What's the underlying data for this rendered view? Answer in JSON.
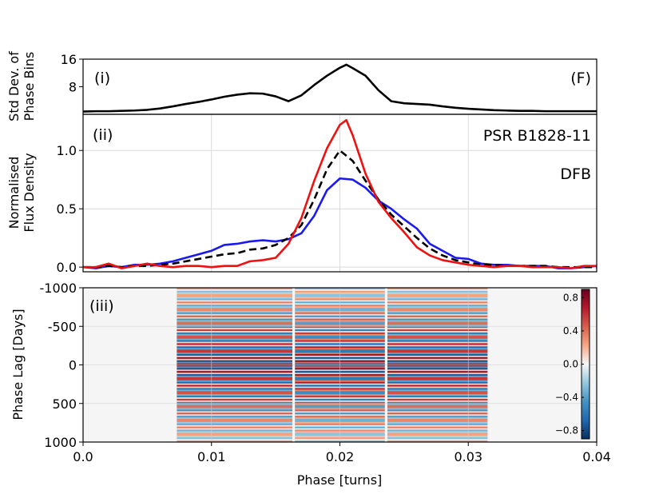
{
  "chart_data": [
    {
      "type": "line",
      "panel_label": "(i)",
      "ylabel": [
        "Std Dev. of",
        "Phase Bins"
      ],
      "annotation": "(F)",
      "xlim": [
        0.0,
        0.04
      ],
      "ylim": [
        0,
        16
      ],
      "yticks": [
        {
          "value": 8,
          "label": "8"
        },
        {
          "value": 16,
          "label": "16"
        }
      ],
      "series": [
        {
          "name": "std_dev",
          "color": "#000000",
          "dashed": false,
          "x": [
            0.0,
            0.001,
            0.002,
            0.003,
            0.004,
            0.005,
            0.006,
            0.007,
            0.008,
            0.009,
            0.01,
            0.011,
            0.012,
            0.013,
            0.014,
            0.015,
            0.016,
            0.017,
            0.018,
            0.019,
            0.02,
            0.0205,
            0.021,
            0.022,
            0.023,
            0.024,
            0.025,
            0.026,
            0.027,
            0.028,
            0.029,
            0.03,
            0.031,
            0.032,
            0.033,
            0.034,
            0.035,
            0.036,
            0.037,
            0.038,
            0.039,
            0.04
          ],
          "y": [
            0.8,
            0.9,
            0.9,
            1.0,
            1.1,
            1.3,
            1.7,
            2.3,
            3.0,
            3.6,
            4.3,
            5.1,
            5.7,
            6.1,
            6.0,
            5.2,
            3.8,
            5.5,
            8.5,
            11.2,
            13.5,
            14.4,
            13.4,
            11.2,
            7.0,
            3.8,
            3.2,
            3.0,
            2.8,
            2.3,
            1.9,
            1.6,
            1.4,
            1.2,
            1.1,
            1.0,
            1.0,
            0.9,
            0.9,
            0.9,
            0.9,
            0.9
          ]
        }
      ]
    },
    {
      "type": "line",
      "panel_label": "(ii)",
      "ylabel": [
        "Normalised",
        "Flux Density"
      ],
      "annotations": [
        "PSR B1828-11",
        "DFB"
      ],
      "xlim": [
        0.0,
        0.04
      ],
      "ylim": [
        -0.04,
        1.31
      ],
      "yticks": [
        {
          "value": 0.0,
          "label": "0.0"
        },
        {
          "value": 0.5,
          "label": "0.5"
        },
        {
          "value": 1.0,
          "label": "1.0"
        }
      ],
      "grid": true,
      "series": [
        {
          "name": "blue",
          "color": "#1a1aee",
          "dashed": false,
          "x": [
            0.0,
            0.001,
            0.002,
            0.003,
            0.004,
            0.005,
            0.006,
            0.007,
            0.008,
            0.009,
            0.01,
            0.011,
            0.012,
            0.013,
            0.014,
            0.015,
            0.016,
            0.017,
            0.018,
            0.019,
            0.02,
            0.021,
            0.022,
            0.023,
            0.024,
            0.025,
            0.026,
            0.027,
            0.028,
            0.029,
            0.03,
            0.031,
            0.032,
            0.033,
            0.034,
            0.035,
            0.036,
            0.037,
            0.038,
            0.039,
            0.04
          ],
          "y": [
            0.0,
            -0.01,
            0.01,
            0.0,
            0.02,
            0.02,
            0.03,
            0.05,
            0.08,
            0.11,
            0.14,
            0.19,
            0.2,
            0.22,
            0.23,
            0.22,
            0.24,
            0.29,
            0.44,
            0.66,
            0.76,
            0.75,
            0.68,
            0.57,
            0.5,
            0.41,
            0.33,
            0.2,
            0.14,
            0.08,
            0.07,
            0.03,
            0.02,
            0.02,
            0.01,
            0.01,
            0.01,
            -0.01,
            -0.01,
            0.0,
            0.01
          ]
        },
        {
          "name": "black_dashed",
          "color": "#000000",
          "dashed": true,
          "x": [
            0.0,
            0.001,
            0.002,
            0.003,
            0.004,
            0.005,
            0.006,
            0.007,
            0.008,
            0.009,
            0.01,
            0.011,
            0.012,
            0.013,
            0.014,
            0.015,
            0.016,
            0.017,
            0.018,
            0.019,
            0.02,
            0.021,
            0.022,
            0.023,
            0.024,
            0.025,
            0.026,
            0.027,
            0.028,
            0.029,
            0.03,
            0.031,
            0.032,
            0.033,
            0.034,
            0.035,
            0.036,
            0.037,
            0.038,
            0.039,
            0.04
          ],
          "y": [
            0.0,
            0.0,
            0.01,
            0.0,
            0.01,
            0.01,
            0.02,
            0.03,
            0.05,
            0.07,
            0.09,
            0.11,
            0.12,
            0.15,
            0.16,
            0.19,
            0.25,
            0.36,
            0.58,
            0.84,
            1.0,
            0.91,
            0.74,
            0.58,
            0.45,
            0.35,
            0.25,
            0.16,
            0.1,
            0.06,
            0.04,
            0.02,
            0.02,
            0.01,
            0.01,
            0.01,
            0.01,
            0.0,
            0.0,
            0.0,
            0.0
          ]
        },
        {
          "name": "red",
          "color": "#ee1111",
          "dashed": false,
          "x": [
            0.0,
            0.001,
            0.002,
            0.003,
            0.004,
            0.005,
            0.006,
            0.007,
            0.008,
            0.009,
            0.01,
            0.011,
            0.012,
            0.013,
            0.014,
            0.015,
            0.016,
            0.017,
            0.018,
            0.019,
            0.02,
            0.0205,
            0.021,
            0.022,
            0.023,
            0.024,
            0.025,
            0.026,
            0.027,
            0.028,
            0.029,
            0.03,
            0.031,
            0.032,
            0.033,
            0.034,
            0.035,
            0.036,
            0.037,
            0.038,
            0.039,
            0.04
          ],
          "y": [
            0.0,
            0.0,
            0.03,
            -0.01,
            0.01,
            0.03,
            0.01,
            0.0,
            0.01,
            0.01,
            0.0,
            0.01,
            0.01,
            0.05,
            0.06,
            0.08,
            0.2,
            0.42,
            0.74,
            1.02,
            1.22,
            1.26,
            1.13,
            0.8,
            0.56,
            0.42,
            0.3,
            0.17,
            0.1,
            0.06,
            0.04,
            0.02,
            0.01,
            0.0,
            0.01,
            0.01,
            0.0,
            0.0,
            0.0,
            -0.01,
            0.01,
            0.01
          ]
        }
      ]
    },
    {
      "type": "heatmap",
      "panel_label": "(iii)",
      "ylabel": "Phase Lag [Days]",
      "xlabel": "Phase [turns]",
      "xlim": [
        0.0,
        0.04
      ],
      "ylim": [
        -1000,
        1000
      ],
      "xticks": [
        {
          "value": 0.0,
          "label": "0.0"
        },
        {
          "value": 0.01,
          "label": "0.01"
        },
        {
          "value": 0.02,
          "label": "0.02"
        },
        {
          "value": 0.03,
          "label": "0.03"
        },
        {
          "value": 0.04,
          "label": "0.04"
        }
      ],
      "yticks": [
        {
          "value": -1000,
          "label": "-1000"
        },
        {
          "value": -500,
          "label": "-500"
        },
        {
          "value": 0,
          "label": "0"
        },
        {
          "value": 500,
          "label": "500"
        },
        {
          "value": 1000,
          "label": "1000"
        }
      ],
      "stripe_period_days": 90,
      "active_phase_range": [
        0.0073,
        0.0315
      ],
      "segments": [
        {
          "x_start": 0.0073,
          "x_end": 0.0163,
          "phase_sign": 1
        },
        {
          "x_start": 0.0165,
          "x_end": 0.0235,
          "phase_sign": -1
        },
        {
          "x_start": 0.0237,
          "x_end": 0.0315,
          "phase_sign": 1
        }
      ],
      "colorbar": {
        "ticks": [
          {
            "value": 0.8,
            "label": "0.8"
          },
          {
            "value": 0.4,
            "label": "0.4"
          },
          {
            "value": 0.0,
            "label": "0.0"
          },
          {
            "value": -0.4,
            "label": "−0.4"
          },
          {
            "value": -0.8,
            "label": "−0.8"
          }
        ],
        "range": [
          -0.9,
          0.9
        ],
        "cmap": "RdBu_r"
      }
    }
  ]
}
